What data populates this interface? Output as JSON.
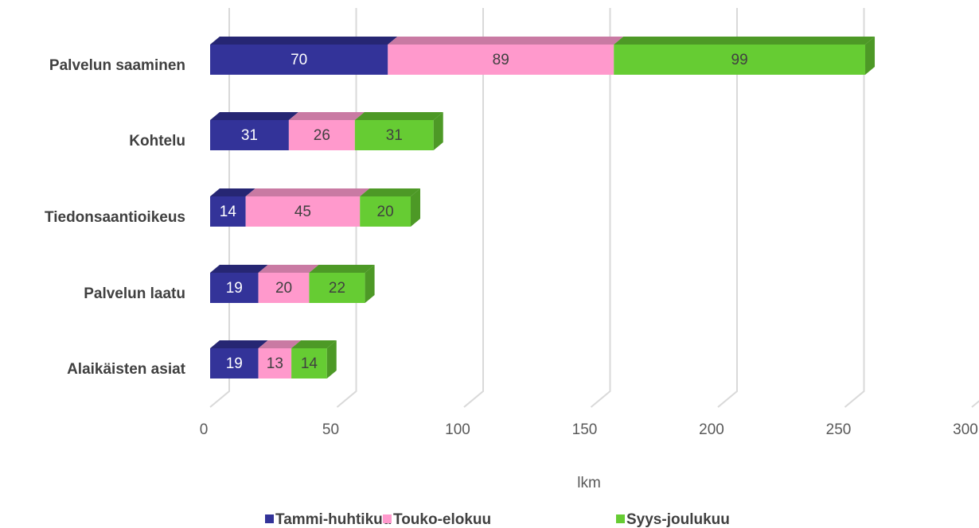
{
  "chart_data": {
    "type": "bar3d_stacked_horizontal",
    "categories": [
      "Palvelun saaminen",
      "Kohtelu",
      "Tiedonsaantioikeus",
      "Palvelun laatu",
      "Alaikäisten asiat"
    ],
    "series": [
      {
        "name": "Tammi-huhtikuu",
        "color": "#333399",
        "shade": "#262673",
        "label_color": "#ffffff",
        "values": [
          70,
          31,
          14,
          19,
          19
        ]
      },
      {
        "name": "Touko-elokuu",
        "color": "#ff99cc",
        "shade": "#c97aa3",
        "label_color": "#404040",
        "values": [
          89,
          26,
          45,
          20,
          13
        ]
      },
      {
        "name": "Syys-joulukuu",
        "color": "#66cc33",
        "shade": "#4d9926",
        "label_color": "#404040",
        "values": [
          99,
          31,
          20,
          22,
          14
        ]
      }
    ],
    "xlabel": "lkm",
    "xlim": [
      0,
      300
    ],
    "xticks": [
      0,
      50,
      100,
      150,
      200,
      250,
      300
    ],
    "grid": true
  }
}
